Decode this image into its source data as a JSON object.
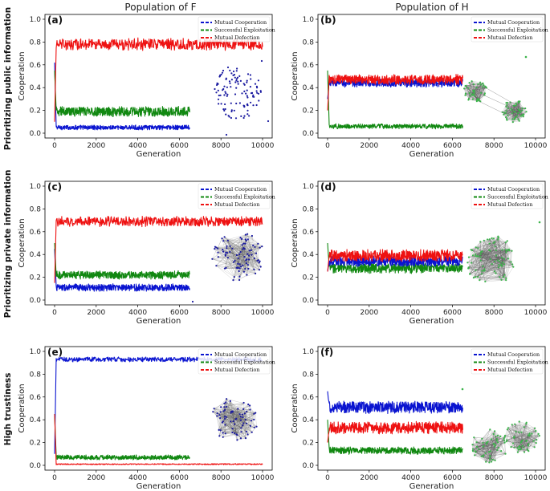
{
  "figure": {
    "column_titles": [
      "Population of F",
      "Population of H"
    ],
    "row_titles": [
      "Prioritizing public information",
      "Prioritizing private information",
      "High trustiness"
    ]
  },
  "chart_data": [
    {
      "id": "a",
      "label": "(a)",
      "type": "line",
      "xlabel": "Generation",
      "ylabel": "Cooperation",
      "xlim": [
        0,
        10000
      ],
      "ylim": [
        0,
        1.0
      ],
      "xticks": [
        "0",
        "2000",
        "4000",
        "6000",
        "8000",
        "10000"
      ],
      "yticks": [
        "0.0",
        "0.2",
        "0.4",
        "0.6",
        "0.8",
        "1.0"
      ],
      "legend": [
        "Mutual Cooperation",
        "Successful Exploitation",
        "Mutual Defection"
      ],
      "series": [
        {
          "name": "Mutual Cooperation",
          "color": "#0a14d0",
          "mean": 0.05,
          "noise": 0.012,
          "x_end": 6500,
          "start": 0.62
        },
        {
          "name": "Successful Exploitation",
          "color": "#118811",
          "mean": 0.19,
          "noise": 0.025,
          "x_end": 6500,
          "start": 0.55
        },
        {
          "name": "Mutual Defection",
          "color": "#ee1111",
          "mean": 0.78,
          "noise": 0.03,
          "x_end": 10000,
          "start": 0.1
        }
      ],
      "network": "scatter"
    },
    {
      "id": "b",
      "label": "(b)",
      "type": "line",
      "xlabel": "Generation",
      "ylabel": "Cooperation",
      "xlim": [
        0,
        10000
      ],
      "ylim": [
        0,
        1.0
      ],
      "xticks": [
        "0",
        "2000",
        "4000",
        "6000",
        "8000",
        "10000"
      ],
      "yticks": [
        "0.0",
        "0.2",
        "0.4",
        "0.6",
        "0.8",
        "1.0"
      ],
      "legend": [
        "Mutual Cooperation",
        "Successful Exploitation",
        "Mutual Defection"
      ],
      "series": [
        {
          "name": "Mutual Cooperation",
          "color": "#0a14d0",
          "mean": 0.44,
          "noise": 0.02,
          "x_end": 6500,
          "start": 0.3
        },
        {
          "name": "Successful Exploitation",
          "color": "#118811",
          "mean": 0.06,
          "noise": 0.012,
          "x_end": 6500,
          "start": 0.55
        },
        {
          "name": "Mutual Defection",
          "color": "#ee1111",
          "mean": 0.47,
          "noise": 0.025,
          "x_end": 6500,
          "start": 0.2
        }
      ],
      "network": "two-clusters"
    },
    {
      "id": "c",
      "label": "(c)",
      "type": "line",
      "xlabel": "Generation",
      "ylabel": "Cooperation",
      "xlim": [
        0,
        10000
      ],
      "ylim": [
        0,
        1.0
      ],
      "xticks": [
        "0",
        "2000",
        "4000",
        "6000",
        "8000",
        "10000"
      ],
      "yticks": [
        "0.0",
        "0.2",
        "0.4",
        "0.6",
        "0.8",
        "1.0"
      ],
      "legend": [
        "Mutual Cooperation",
        "Successful Exploitation",
        "Mutual Defection"
      ],
      "series": [
        {
          "name": "Mutual Cooperation",
          "color": "#0a14d0",
          "mean": 0.11,
          "noise": 0.018,
          "x_end": 6500,
          "start": 0.45
        },
        {
          "name": "Successful Exploitation",
          "color": "#118811",
          "mean": 0.22,
          "noise": 0.02,
          "x_end": 6500,
          "start": 0.5
        },
        {
          "name": "Mutual Defection",
          "color": "#ee1111",
          "mean": 0.69,
          "noise": 0.025,
          "x_end": 10000,
          "start": 0.15
        }
      ],
      "network": "one-cluster-blue"
    },
    {
      "id": "d",
      "label": "(d)",
      "type": "line",
      "xlabel": "Generation",
      "ylabel": "Cooperation",
      "xlim": [
        0,
        10000
      ],
      "ylim": [
        0,
        1.0
      ],
      "xticks": [
        "0",
        "2000",
        "4000",
        "6000",
        "8000",
        "10000"
      ],
      "yticks": [
        "0.0",
        "0.2",
        "0.4",
        "0.6",
        "0.8",
        "1.0"
      ],
      "legend": [
        "Mutual Cooperation",
        "Successful Exploitation",
        "Mutual Defection"
      ],
      "series": [
        {
          "name": "Successful Exploitation",
          "color": "#118811",
          "mean": 0.28,
          "noise": 0.025,
          "x_end": 6500,
          "start": 0.5
        },
        {
          "name": "Mutual Cooperation",
          "color": "#0a14d0",
          "mean": 0.34,
          "noise": 0.025,
          "x_end": 6500,
          "start": 0.25
        },
        {
          "name": "Mutual Defection",
          "color": "#ee1111",
          "mean": 0.39,
          "noise": 0.03,
          "x_end": 6500,
          "start": 0.25
        }
      ],
      "network": "one-cluster-green"
    },
    {
      "id": "e",
      "label": "(e)",
      "type": "line",
      "xlabel": "Generation",
      "ylabel": "Cooperation",
      "xlim": [
        0,
        10000
      ],
      "ylim": [
        0,
        1.0
      ],
      "xticks": [
        "0",
        "2000",
        "4000",
        "6000",
        "8000",
        "10000"
      ],
      "yticks": [
        "0.0",
        "0.2",
        "0.4",
        "0.6",
        "0.8",
        "1.0"
      ],
      "legend": [
        "Mutual Cooperation",
        "Successful Exploitation",
        "Mutual Defection"
      ],
      "series": [
        {
          "name": "Mutual Cooperation",
          "color": "#0a14d0",
          "mean": 0.93,
          "noise": 0.012,
          "x_end": 10000,
          "start": 0.1
        },
        {
          "name": "Successful Exploitation",
          "color": "#118811",
          "mean": 0.07,
          "noise": 0.012,
          "x_end": 6500,
          "start": 0.45
        },
        {
          "name": "Mutual Defection",
          "color": "#ee1111",
          "mean": 0.01,
          "noise": 0.003,
          "x_end": 10000,
          "start": 0.45
        }
      ],
      "network": "one-cluster-blue-e"
    },
    {
      "id": "f",
      "label": "(f)",
      "type": "line",
      "xlabel": "Generation",
      "ylabel": "Cooperation",
      "xlim": [
        0,
        10000
      ],
      "ylim": [
        0,
        1.0
      ],
      "xticks": [
        "0",
        "2000",
        "4000",
        "6000",
        "8000",
        "10000"
      ],
      "yticks": [
        "0.0",
        "0.2",
        "0.4",
        "0.6",
        "0.8",
        "1.0"
      ],
      "legend": [
        "Mutual Cooperation",
        "Successful Exploitation",
        "Mutual Defection"
      ],
      "series": [
        {
          "name": "Successful Exploitation",
          "color": "#118811",
          "mean": 0.13,
          "noise": 0.018,
          "x_end": 6500,
          "start": 0.4
        },
        {
          "name": "Mutual Defection",
          "color": "#ee1111",
          "mean": 0.33,
          "noise": 0.03,
          "x_end": 6500,
          "start": 0.2
        },
        {
          "name": "Mutual Cooperation",
          "color": "#0a14d0",
          "mean": 0.51,
          "noise": 0.03,
          "x_end": 6500,
          "start": 0.65
        }
      ],
      "network": "two-clusters-green"
    }
  ]
}
